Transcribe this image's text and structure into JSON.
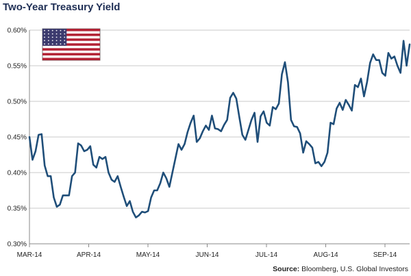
{
  "title": "Two-Year Treasury Yield",
  "source": {
    "label": "Source:",
    "text": "Bloomberg, U.S. Global Investors"
  },
  "flag": {
    "icon": "us-flag-icon",
    "colors": {
      "red": "#b22234",
      "white": "#ffffff",
      "blue": "#3c3b6e"
    }
  },
  "chart_data": {
    "type": "line",
    "title": "Two-Year Treasury Yield",
    "xlabel": "",
    "ylabel": "",
    "ylim": [
      0.3,
      0.6
    ],
    "grid": true,
    "legend": "none",
    "line_color": "#1f4e79",
    "y_ticks": [
      "0.30%",
      "0.35%",
      "0.40%",
      "0.45%",
      "0.50%",
      "0.55%",
      "0.60%"
    ],
    "x_tick_labels": [
      "MAR-14",
      "APR-14",
      "MAY-14",
      "JUN-14",
      "JUL-14",
      "AUG-14",
      "SEP-14"
    ],
    "series": [
      {
        "values": [
          0.45,
          0.418,
          0.43,
          0.453,
          0.454,
          0.41,
          0.395,
          0.395,
          0.365,
          0.352,
          0.355,
          0.368,
          0.368,
          0.368,
          0.395,
          0.4,
          0.441,
          0.438,
          0.43,
          0.432,
          0.437,
          0.411,
          0.407,
          0.422,
          0.419,
          0.422,
          0.4,
          0.39,
          0.387,
          0.395,
          0.38,
          0.366,
          0.353,
          0.36,
          0.345,
          0.337,
          0.34,
          0.345,
          0.344,
          0.346,
          0.365,
          0.375,
          0.375,
          0.385,
          0.4,
          0.392,
          0.38,
          0.4,
          0.42,
          0.44,
          0.432,
          0.44,
          0.457,
          0.47,
          0.48,
          0.443,
          0.448,
          0.458,
          0.466,
          0.46,
          0.48,
          0.462,
          0.461,
          0.458,
          0.467,
          0.474,
          0.505,
          0.512,
          0.504,
          0.478,
          0.453,
          0.446,
          0.46,
          0.474,
          0.484,
          0.443,
          0.479,
          0.486,
          0.47,
          0.466,
          0.492,
          0.489,
          0.497,
          0.538,
          0.555,
          0.527,
          0.474,
          0.465,
          0.464,
          0.455,
          0.428,
          0.444,
          0.44,
          0.435,
          0.413,
          0.415,
          0.409,
          0.415,
          0.428,
          0.47,
          0.468,
          0.49,
          0.498,
          0.488,
          0.502,
          0.495,
          0.487,
          0.523,
          0.52,
          0.532,
          0.507,
          0.527,
          0.554,
          0.566,
          0.558,
          0.558,
          0.54,
          0.536,
          0.568,
          0.56,
          0.563,
          0.55,
          0.54,
          0.585,
          0.55,
          0.58
        ]
      }
    ]
  }
}
